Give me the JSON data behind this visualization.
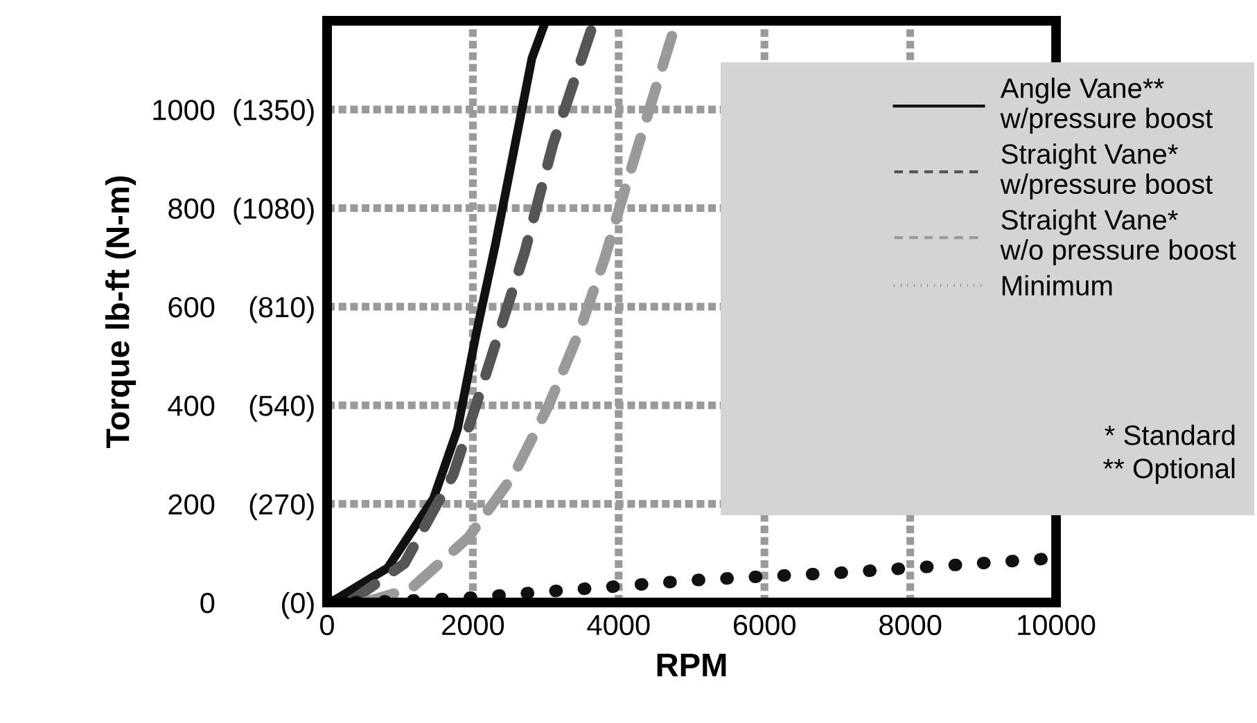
{
  "chart_data": {
    "type": "line",
    "xlabel": "RPM",
    "ylabel": "Torque lb-ft (N-m)",
    "xlim": [
      0,
      10000
    ],
    "ylim": [
      0,
      1180
    ],
    "xticks": [
      0,
      2000,
      4000,
      6000,
      8000,
      10000
    ],
    "yticks": [
      0,
      200,
      400,
      600,
      800,
      1000
    ],
    "y2lim": [
      0,
      1593
    ],
    "y2ticks": [
      {
        "value": 0,
        "label": "(0)"
      },
      {
        "value": 270,
        "label": "(270)"
      },
      {
        "value": 540,
        "label": "(540)"
      },
      {
        "value": 810,
        "label": "(810)"
      },
      {
        "value": 1080,
        "label": "(1080)"
      },
      {
        "value": 1350,
        "label": "(1350)"
      }
    ],
    "grid": true,
    "legend": "top right",
    "series": [
      {
        "name": "Angle Vane**\nw/pressure boost",
        "color": "#111111",
        "line_style": "solid",
        "x": [
          0,
          115,
          830,
          1460,
          1790,
          2040,
          2310,
          2560,
          2810,
          3000
        ],
        "values": [
          0,
          6,
          70,
          211,
          352,
          541,
          727,
          915,
          1104,
          1180
        ]
      },
      {
        "name": "Straight Vane*\nw/pressure boost",
        "color": "#555555",
        "line_style": "dashed",
        "x": [
          300,
          1060,
          1730,
          2110,
          2710,
          3100,
          3620
        ],
        "values": [
          0,
          79,
          259,
          431,
          710,
          930,
          1160
        ]
      },
      {
        "name": "Straight Vane*\nw/o pressure boost",
        "color": "#9a9a9a",
        "line_style": "dashed",
        "x": [
          500,
          1150,
          1940,
          2560,
          3040,
          3460,
          3810,
          4100,
          4420,
          4730
        ],
        "values": [
          0,
          28,
          132,
          259,
          400,
          549,
          699,
          845,
          1000,
          1149
        ]
      },
      {
        "name": "Minimum",
        "color": "#111111",
        "line_style": "dotted",
        "x": [
          0,
          1000,
          2000,
          3000,
          4000,
          5000,
          6000,
          7000,
          8000,
          9000,
          9800
        ],
        "values": [
          0,
          3,
          10,
          22,
          33,
          45,
          53,
          60,
          70,
          80,
          88
        ]
      }
    ],
    "annotations": [
      "* Standard",
      "** Optional"
    ]
  }
}
